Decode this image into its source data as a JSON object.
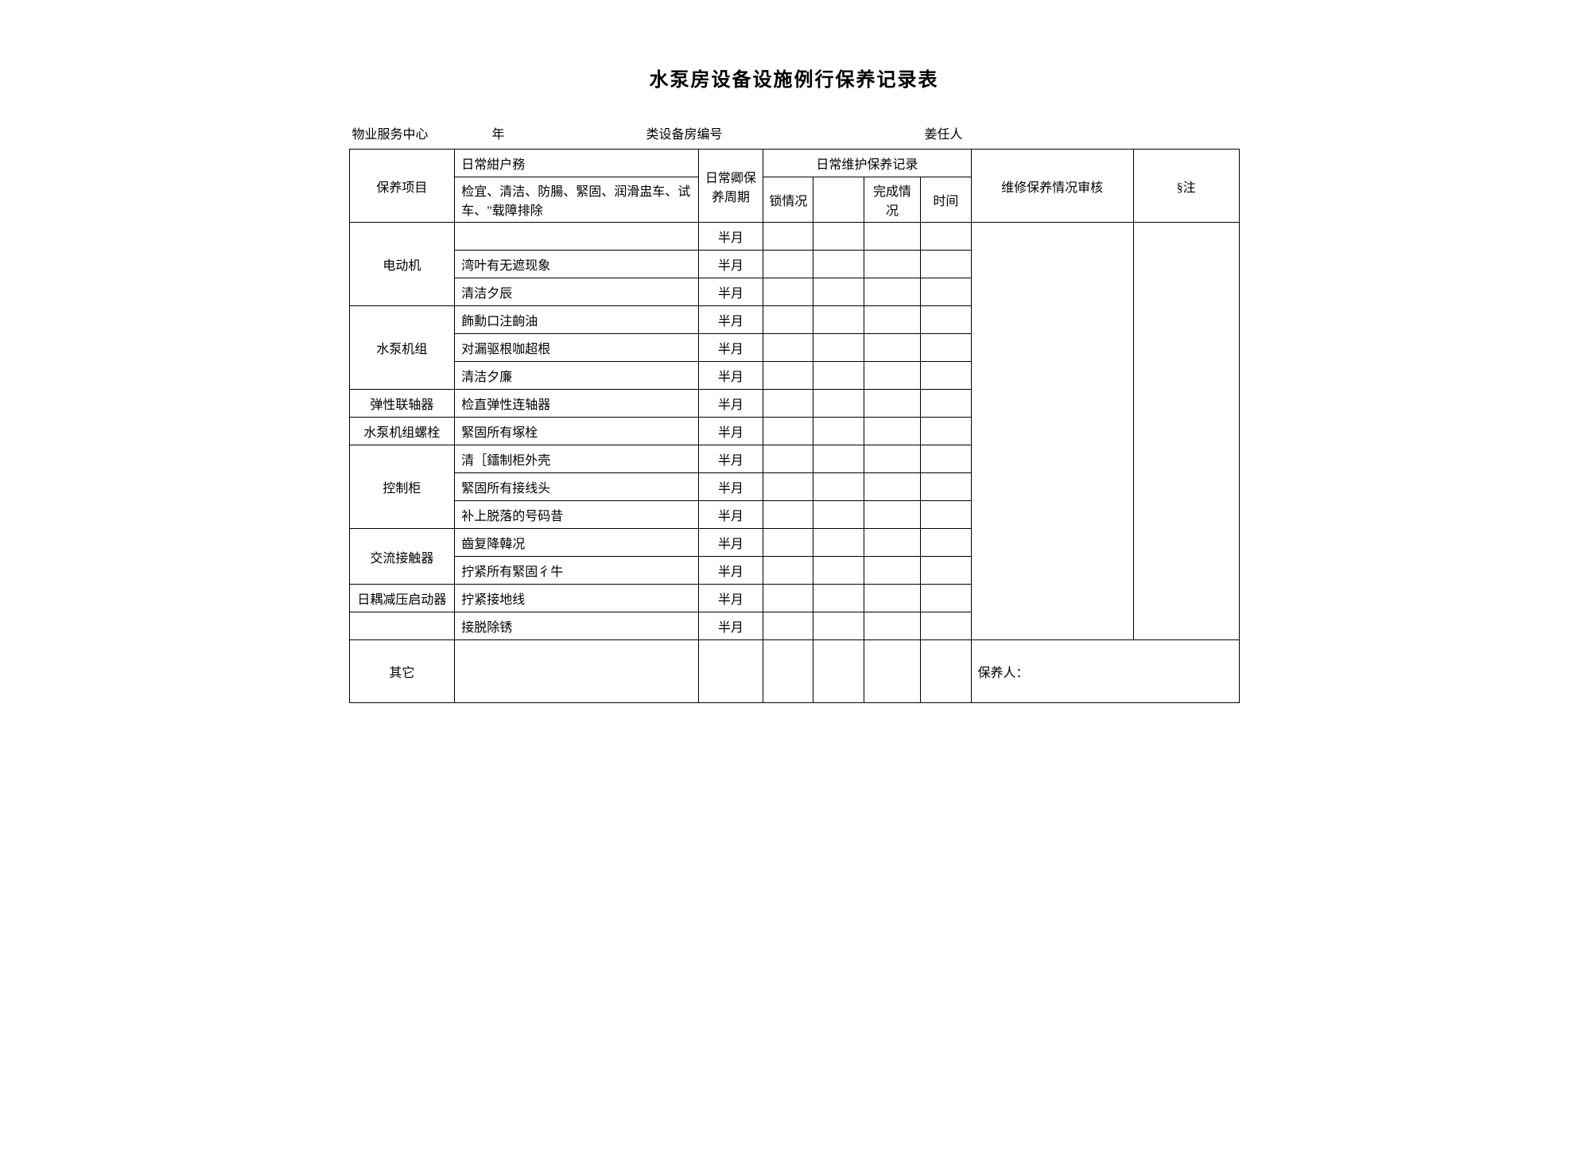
{
  "title": "水泵房设备设施例行保养记录表",
  "info": {
    "left_1": "物业服务中心",
    "left_2": "年",
    "mid": "类设备房编号",
    "right": "姜任人"
  },
  "header": {
    "col1": "保养项目",
    "col2_line1": "日常紺户務",
    "col2_line2": "检宜、清洁、防腸、緊固、润滑盅车、试车、\"载障排除",
    "col3": "日常卿保养周期",
    "daily_group": "日常维护保养记录",
    "col4": "锁情况",
    "col5": "",
    "col6": "完成情况",
    "col7": "时间",
    "col8": "维修保养情况审核",
    "col9": "§注"
  },
  "rows": [
    {
      "group": "电动机",
      "span": 3,
      "desc": "",
      "period": "半月"
    },
    {
      "desc": "湾叶有无遮现象",
      "period": "半月"
    },
    {
      "desc": "清洁夕辰",
      "period": "半月"
    },
    {
      "group": "水泵机组",
      "span": 3,
      "desc": "飾勳口注齣油",
      "period": "半月"
    },
    {
      "desc": "对漏驱根咖超根",
      "period": "半月"
    },
    {
      "desc": "清洁夕廉",
      "period": "半月"
    },
    {
      "group": "弹性联轴器",
      "span": 1,
      "desc": "检直弹性连轴器",
      "period": "半月"
    },
    {
      "group": "水泵机组螺栓",
      "span": 1,
      "desc": "緊固所有塚栓",
      "period": "半月"
    },
    {
      "group": "控制柜",
      "span": 3,
      "desc": "清［鐳制柜外壳",
      "period": "半月"
    },
    {
      "desc": "緊固所有接线头",
      "period": "半月"
    },
    {
      "desc": "补上脱落的号码昔",
      "period": "半月"
    },
    {
      "group": "交流接触器",
      "span": 2,
      "desc": "齒复降韓况",
      "period": "半月"
    },
    {
      "desc": "拧紧所有緊固彳牛",
      "period": "半月"
    },
    {
      "group": "日耦减压启动器",
      "span": 1,
      "desc": "拧紧接地线",
      "period": "半月"
    },
    {
      "group": "",
      "span": 1,
      "desc": "接脱除锈",
      "period": "半月"
    }
  ],
  "footer": {
    "group": "其它",
    "signer": "保养人："
  }
}
